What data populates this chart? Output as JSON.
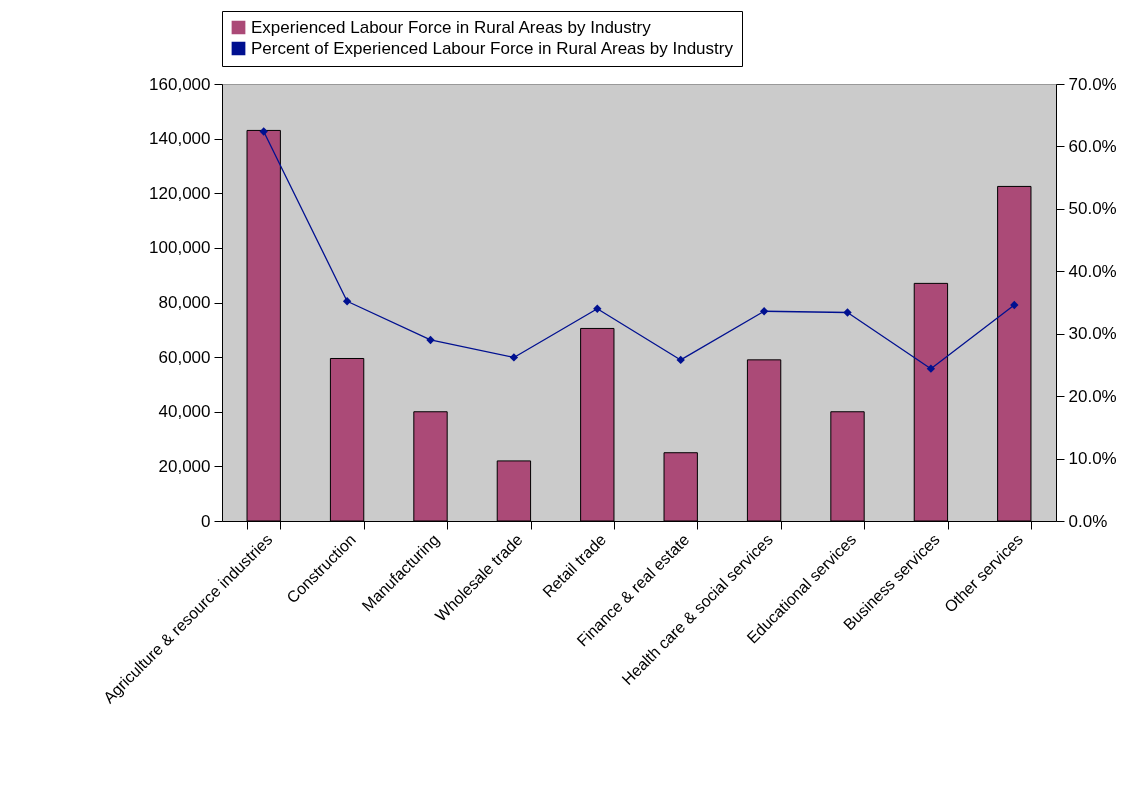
{
  "chart_data": {
    "type": "bar",
    "categories": [
      "Agriculture & resource industries",
      "Construction",
      "Manufacturing",
      "Wholesale trade",
      "Retail trade",
      "Finance & real estate",
      "Health care & social services",
      "Educational services",
      "Business services",
      "Other services"
    ],
    "series": [
      {
        "name": "Experienced Labour Force in Rural Areas by Industry",
        "color": "#ab4a77",
        "values": [
          143000,
          59500,
          40000,
          22000,
          70500,
          25000,
          59000,
          40000,
          87000,
          122500
        ]
      },
      {
        "name": "Percent of Experienced Labour Force in Rural Areas by Industry",
        "type": "line",
        "axis": "y2",
        "color": "#001090",
        "marker": "diamond",
        "values": [
          62.4,
          35.2,
          29.0,
          26.2,
          34.0,
          25.8,
          33.6,
          33.4,
          24.4,
          34.6
        ]
      }
    ],
    "ylim": [
      0,
      160000
    ],
    "yticks": [
      0,
      {
        "value": 20000,
        "label": "20,000"
      },
      {
        "value": 40000,
        "label": "40,000"
      },
      {
        "value": 60000,
        "label": "60,000"
      },
      {
        "value": 80000,
        "label": "80,000"
      },
      {
        "value": 100000,
        "label": "100,000"
      },
      {
        "value": 120000,
        "label": "120,000"
      },
      {
        "value": 140000,
        "label": "140,000"
      },
      {
        "value": 160000,
        "label": "160,000"
      }
    ],
    "y2lim": [
      0,
      70
    ],
    "y2ticks": [
      {
        "value": 0,
        "label": "0.0%"
      },
      {
        "value": 10,
        "label": "10.0%"
      },
      {
        "value": 20,
        "label": "20.0%"
      },
      {
        "value": 30,
        "label": "30.0%"
      },
      {
        "value": 40,
        "label": "40.0%"
      },
      {
        "value": 50,
        "label": "50.0%"
      },
      {
        "value": 60,
        "label": "60.0%"
      },
      {
        "value": 70,
        "label": "70.0%"
      }
    ],
    "legend": "top",
    "grid": false
  }
}
